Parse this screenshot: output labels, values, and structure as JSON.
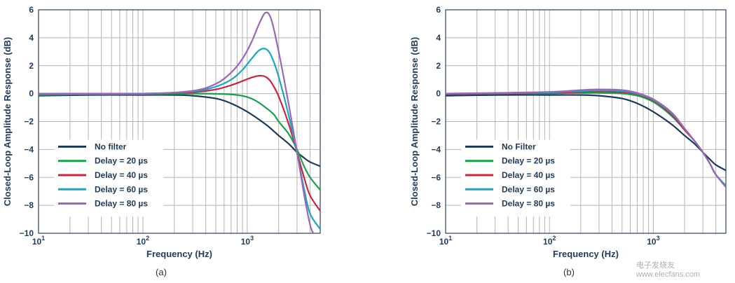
{
  "chart_data": [
    {
      "type": "line",
      "caption": "(a)",
      "xlabel": "Frequency (Hz)",
      "ylabel": "Closed-Loop Amplitude Response (dB)",
      "xscale": "log",
      "xlim": [
        10,
        5000
      ],
      "ylim": [
        -10,
        6
      ],
      "x_tick_labels": [
        {
          "base": "10",
          "exp": "1"
        },
        {
          "base": "10",
          "exp": "2"
        },
        {
          "base": "10",
          "exp": "3"
        }
      ],
      "y_ticks": [
        "6",
        "4",
        "2",
        "0",
        "−2",
        "−4",
        "−6",
        "−8",
        "−10"
      ],
      "legend_position": "bottom-left",
      "series": [
        {
          "name": "No filter",
          "color": "#1b3a5c",
          "x": [
            10,
            30,
            100,
            200,
            300,
            500,
            700,
            1000,
            1500,
            2000,
            2500,
            3000,
            3500,
            4000,
            5000
          ],
          "y": [
            -0.15,
            -0.1,
            -0.1,
            -0.1,
            -0.15,
            -0.35,
            -0.7,
            -1.3,
            -2.2,
            -3.0,
            -3.6,
            -4.2,
            -4.6,
            -4.9,
            -5.2
          ]
        },
        {
          "name": "Delay = 20 µs",
          "color": "#1aa14a",
          "x": [
            10,
            30,
            100,
            300,
            600,
            800,
            1000,
            1200,
            1500,
            1800,
            2000,
            2500,
            3000,
            3500,
            4000,
            5000
          ],
          "y": [
            -0.1,
            -0.05,
            -0.05,
            0,
            -0.03,
            -0.1,
            -0.25,
            -0.5,
            -1.0,
            -1.5,
            -2.0,
            -2.9,
            -4.0,
            -5.2,
            -6.0,
            -6.9
          ]
        },
        {
          "name": "Delay = 40 µs",
          "color": "#c8243e",
          "x": [
            10,
            100,
            300,
            500,
            700,
            900,
            1100,
            1300,
            1500,
            1700,
            2000,
            2500,
            3000,
            3500,
            4000,
            5000
          ],
          "y": [
            0,
            0,
            0.1,
            0.3,
            0.6,
            0.9,
            1.15,
            1.28,
            1.2,
            0.8,
            -0.2,
            -2.2,
            -4.2,
            -6.0,
            -7.3,
            -8.4
          ]
        },
        {
          "name": "Delay = 60 µs",
          "color": "#1ba6c1",
          "x": [
            10,
            100,
            300,
            500,
            700,
            900,
            1100,
            1300,
            1500,
            1700,
            2000,
            2500,
            3000,
            3500,
            4000,
            5000
          ],
          "y": [
            0,
            0,
            0.15,
            0.5,
            1.0,
            1.7,
            2.5,
            3.1,
            3.2,
            2.7,
            1.2,
            -1.6,
            -4.3,
            -6.8,
            -8.6,
            -9.7
          ]
        },
        {
          "name": "Delay = 80 µs",
          "color": "#9a66b8",
          "x": [
            10,
            100,
            300,
            500,
            700,
            900,
            1100,
            1300,
            1500,
            1700,
            2000,
            2500,
            3000,
            3500,
            4000,
            4300
          ],
          "y": [
            0,
            0,
            0.2,
            0.7,
            1.5,
            2.5,
            3.7,
            5.0,
            5.8,
            5.3,
            3.0,
            -0.8,
            -4.2,
            -7.2,
            -9.4,
            -10
          ]
        }
      ]
    },
    {
      "type": "line",
      "caption": "(b)",
      "xlabel": "Frequency (Hz)",
      "ylabel": "Closed-Loop Amplitude Response (dB)",
      "xscale": "log",
      "xlim": [
        10,
        5000
      ],
      "ylim": [
        -10,
        6
      ],
      "x_tick_labels": [
        {
          "base": "10",
          "exp": "1"
        },
        {
          "base": "10",
          "exp": "2"
        },
        {
          "base": "10",
          "exp": "3"
        }
      ],
      "y_ticks": [
        "6",
        "4",
        "2",
        "0",
        "−2",
        "−4",
        "−6",
        "−8",
        "−10"
      ],
      "legend_position": "bottom-left",
      "series": [
        {
          "name": "No Filter",
          "color": "#1b3a5c",
          "x": [
            10,
            30,
            100,
            200,
            300,
            500,
            700,
            1000,
            1500,
            2000,
            2500,
            3000,
            3500,
            4000,
            5000
          ],
          "y": [
            -0.15,
            -0.1,
            -0.1,
            -0.1,
            -0.15,
            -0.35,
            -0.7,
            -1.3,
            -2.2,
            -3.0,
            -3.6,
            -4.2,
            -4.7,
            -5.1,
            -5.5
          ]
        },
        {
          "name": "Delay = 20 µs",
          "color": "#1aa14a",
          "x": [
            10,
            30,
            100,
            200,
            300,
            500,
            700,
            1000,
            1500,
            2000,
            2500,
            3000,
            3500,
            4000,
            5000
          ],
          "y": [
            -0.05,
            0,
            0.02,
            0.05,
            0.05,
            0,
            -0.15,
            -0.6,
            -1.6,
            -2.6,
            -3.4,
            -4.2,
            -5.0,
            -5.8,
            -6.6
          ]
        },
        {
          "name": "Delay = 40 µs",
          "color": "#c8243e",
          "x": [
            10,
            30,
            100,
            200,
            300,
            500,
            700,
            1000,
            1500,
            2000,
            2500,
            3000,
            3500,
            4000,
            5000
          ],
          "y": [
            -0.03,
            0,
            0.05,
            0.12,
            0.15,
            0.1,
            -0.05,
            -0.5,
            -1.5,
            -2.6,
            -3.4,
            -4.2,
            -5.0,
            -5.8,
            -6.6
          ]
        },
        {
          "name": "Delay = 60 µs",
          "color": "#1ba6c1",
          "x": [
            10,
            30,
            100,
            200,
            300,
            500,
            700,
            1000,
            1500,
            2000,
            2500,
            3000,
            3500,
            4000,
            5000
          ],
          "y": [
            0,
            0.02,
            0.08,
            0.18,
            0.22,
            0.18,
            0,
            -0.45,
            -1.4,
            -2.5,
            -3.4,
            -4.2,
            -5.0,
            -5.8,
            -6.6
          ]
        },
        {
          "name": "Delay = 80 µs",
          "color": "#9a66b8",
          "x": [
            10,
            30,
            100,
            200,
            300,
            500,
            700,
            1000,
            1500,
            2000,
            2500,
            3000,
            3500,
            4000,
            5000
          ],
          "y": [
            0,
            0.05,
            0.12,
            0.25,
            0.3,
            0.25,
            0.05,
            -0.4,
            -1.35,
            -2.5,
            -3.4,
            -4.2,
            -5.0,
            -5.8,
            -6.7
          ]
        }
      ]
    }
  ],
  "watermark": "电子发烧友 www.elecfans.com"
}
